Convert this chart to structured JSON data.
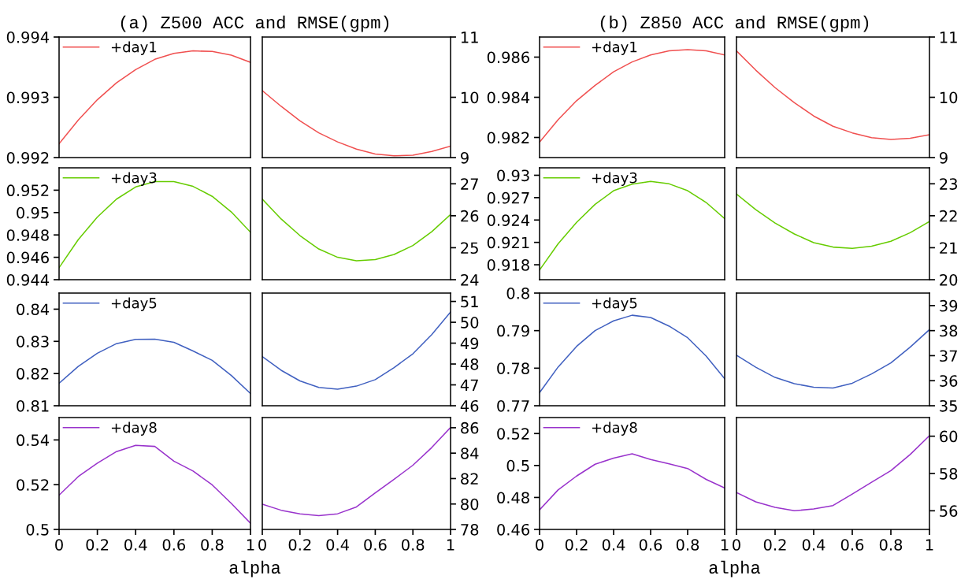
{
  "chart_data": [
    {
      "type": "line",
      "title": "(a) Z500 ACC and RMSE(gpm)",
      "x": [
        0,
        0.1,
        0.2,
        0.3,
        0.4,
        0.5,
        0.6,
        0.7,
        0.8,
        0.9,
        1
      ],
      "xlim": [
        0,
        1
      ],
      "ylim": [
        0.992,
        0.994
      ],
      "yticks": [
        0.992,
        0.993,
        0.994
      ],
      "tick_labels": "y",
      "legend": "top left",
      "series": [
        {
          "name": "+day1",
          "color": "#f05050",
          "values": [
            0.99223,
            0.99262,
            0.99296,
            0.99324,
            0.99346,
            0.99363,
            0.99373,
            0.99377,
            0.99376,
            0.9937,
            0.99358
          ]
        }
      ]
    },
    {
      "type": "line",
      "x": [
        0,
        0.1,
        0.2,
        0.3,
        0.4,
        0.5,
        0.6,
        0.7,
        0.8,
        0.9,
        1
      ],
      "xlim": [
        0,
        1
      ],
      "y2lim": [
        9,
        11
      ],
      "y2ticks": [
        9,
        10,
        11
      ],
      "tick_labels": "y2",
      "series": [
        {
          "color": "#f05050",
          "axis": "y2",
          "values": [
            10.11,
            9.85,
            9.61,
            9.41,
            9.26,
            9.14,
            9.06,
            9.03,
            9.04,
            9.1,
            9.19
          ]
        }
      ]
    },
    {
      "type": "line",
      "title": "(b) Z850 ACC and RMSE(gpm)",
      "x": [
        0,
        0.1,
        0.2,
        0.3,
        0.4,
        0.5,
        0.6,
        0.7,
        0.8,
        0.9,
        1
      ],
      "xlim": [
        0,
        1
      ],
      "ylim": [
        0.981,
        0.987
      ],
      "yticks": [
        0.982,
        0.984,
        0.986
      ],
      "tick_labels": "y",
      "legend": "top left",
      "series": [
        {
          "name": "+day1",
          "color": "#f05050",
          "values": [
            0.98177,
            0.98288,
            0.98383,
            0.98459,
            0.98527,
            0.98576,
            0.98611,
            0.98631,
            0.98637,
            0.98631,
            0.98611
          ]
        }
      ]
    },
    {
      "type": "line",
      "x": [
        0,
        0.1,
        0.2,
        0.3,
        0.4,
        0.5,
        0.6,
        0.7,
        0.8,
        0.9,
        1
      ],
      "xlim": [
        0,
        1
      ],
      "y2lim": [
        9,
        11
      ],
      "y2ticks": [
        9,
        10,
        11
      ],
      "tick_labels": "y2",
      "series": [
        {
          "color": "#f05050",
          "axis": "y2",
          "values": [
            10.77,
            10.45,
            10.16,
            9.91,
            9.69,
            9.52,
            9.41,
            9.33,
            9.3,
            9.32,
            9.38
          ]
        }
      ]
    },
    {
      "type": "line",
      "x": [
        0,
        0.1,
        0.2,
        0.3,
        0.4,
        0.5,
        0.6,
        0.7,
        0.8,
        0.9,
        1
      ],
      "xlim": [
        0,
        1
      ],
      "ylim": [
        0.944,
        0.954
      ],
      "yticks": [
        0.944,
        0.946,
        0.948,
        0.95,
        0.952
      ],
      "tick_labels": "y",
      "legend": "top left",
      "series": [
        {
          "name": "+day3",
          "color": "#66cc00",
          "values": [
            0.94507,
            0.94757,
            0.9496,
            0.9512,
            0.95229,
            0.95276,
            0.95276,
            0.95234,
            0.95145,
            0.95005,
            0.94824
          ]
        }
      ]
    },
    {
      "type": "line",
      "x": [
        0,
        0.1,
        0.2,
        0.3,
        0.4,
        0.5,
        0.6,
        0.7,
        0.8,
        0.9,
        1
      ],
      "xlim": [
        0,
        1
      ],
      "y2lim": [
        24,
        27.5
      ],
      "y2ticks": [
        24,
        25,
        26,
        27
      ],
      "tick_labels": "y2",
      "series": [
        {
          "color": "#66cc00",
          "axis": "y2",
          "values": [
            26.52,
            25.9,
            25.38,
            24.96,
            24.7,
            24.59,
            24.63,
            24.79,
            25.07,
            25.5,
            26.04
          ]
        }
      ]
    },
    {
      "type": "line",
      "x": [
        0,
        0.1,
        0.2,
        0.3,
        0.4,
        0.5,
        0.6,
        0.7,
        0.8,
        0.9,
        1
      ],
      "xlim": [
        0,
        1
      ],
      "ylim": [
        0.916,
        0.931
      ],
      "yticks": [
        0.918,
        0.921,
        0.924,
        0.927,
        0.93
      ],
      "tick_labels": "y",
      "legend": "top left",
      "series": [
        {
          "name": "+day3",
          "color": "#66cc00",
          "values": [
            0.91729,
            0.9208,
            0.92368,
            0.9261,
            0.92793,
            0.9288,
            0.92918,
            0.92885,
            0.92793,
            0.92635,
            0.92418
          ]
        }
      ]
    },
    {
      "type": "line",
      "x": [
        0,
        0.1,
        0.2,
        0.3,
        0.4,
        0.5,
        0.6,
        0.7,
        0.8,
        0.9,
        1
      ],
      "xlim": [
        0,
        1
      ],
      "y2lim": [
        20,
        23.5
      ],
      "y2ticks": [
        20,
        21,
        22,
        23
      ],
      "tick_labels": "y2",
      "series": [
        {
          "color": "#66cc00",
          "axis": "y2",
          "values": [
            22.68,
            22.19,
            21.77,
            21.43,
            21.16,
            21.02,
            20.98,
            21.05,
            21.2,
            21.47,
            21.82
          ]
        }
      ]
    },
    {
      "type": "line",
      "x": [
        0,
        0.1,
        0.2,
        0.3,
        0.4,
        0.5,
        0.6,
        0.7,
        0.8,
        0.9,
        1
      ],
      "xlim": [
        0,
        1
      ],
      "ylim": [
        0.81,
        0.845
      ],
      "yticks": [
        0.81,
        0.82,
        0.83,
        0.84
      ],
      "tick_labels": "y",
      "legend": "top left",
      "series": [
        {
          "name": "+day5",
          "color": "#4060c0",
          "values": [
            0.817,
            0.8222,
            0.8263,
            0.8293,
            0.8306,
            0.8307,
            0.8297,
            0.827,
            0.8241,
            0.8194,
            0.8138
          ]
        }
      ]
    },
    {
      "type": "line",
      "x": [
        0,
        0.1,
        0.2,
        0.3,
        0.4,
        0.5,
        0.6,
        0.7,
        0.8,
        0.9,
        1
      ],
      "xlim": [
        0,
        1
      ],
      "y2lim": [
        46,
        51.4
      ],
      "y2ticks": [
        46,
        47,
        48,
        49,
        50,
        51
      ],
      "tick_labels": "y2",
      "series": [
        {
          "color": "#4060c0",
          "axis": "y2",
          "values": [
            48.36,
            47.7,
            47.19,
            46.88,
            46.79,
            46.94,
            47.25,
            47.83,
            48.49,
            49.41,
            50.49
          ]
        }
      ]
    },
    {
      "type": "line",
      "x": [
        0,
        0.1,
        0.2,
        0.3,
        0.4,
        0.5,
        0.6,
        0.7,
        0.8,
        0.9,
        1
      ],
      "xlim": [
        0,
        1
      ],
      "ylim": [
        0.77,
        0.8
      ],
      "yticks": [
        0.77,
        0.78,
        0.79,
        0.8
      ],
      "tick_labels": "y",
      "legend": "top left",
      "series": [
        {
          "name": "+day5",
          "color": "#4060c0",
          "values": [
            0.7735,
            0.7803,
            0.7858,
            0.79,
            0.7926,
            0.7941,
            0.7935,
            0.7912,
            0.7881,
            0.7832,
            0.7772
          ]
        }
      ]
    },
    {
      "type": "line",
      "x": [
        0,
        0.1,
        0.2,
        0.3,
        0.4,
        0.5,
        0.6,
        0.7,
        0.8,
        0.9,
        1
      ],
      "xlim": [
        0,
        1
      ],
      "y2lim": [
        35,
        39.5
      ],
      "y2ticks": [
        35,
        36,
        37,
        38,
        39
      ],
      "tick_labels": "y2",
      "series": [
        {
          "color": "#4060c0",
          "axis": "y2",
          "values": [
            37.02,
            36.54,
            36.13,
            35.88,
            35.74,
            35.71,
            35.9,
            36.27,
            36.71,
            37.34,
            38.04
          ]
        }
      ]
    },
    {
      "type": "line",
      "xlabel": "alpha",
      "x": [
        0,
        0.1,
        0.2,
        0.3,
        0.4,
        0.5,
        0.6,
        0.7,
        0.8,
        0.9,
        1
      ],
      "xlim": [
        0,
        1
      ],
      "xticks": [
        0,
        0.2,
        0.4,
        0.6,
        0.8,
        1
      ],
      "ylim": [
        0.5,
        0.55
      ],
      "yticks": [
        0.5,
        0.52,
        0.54
      ],
      "legend": "top left",
      "series": [
        {
          "name": "+day8",
          "color": "#9933cc",
          "values": [
            0.5153,
            0.5236,
            0.5296,
            0.5348,
            0.5376,
            0.5371,
            0.5305,
            0.5261,
            0.5199,
            0.5116,
            0.5028
          ]
        }
      ]
    },
    {
      "type": "line",
      "x": [
        0,
        0.1,
        0.2,
        0.3,
        0.4,
        0.5,
        0.6,
        0.7,
        0.8,
        0.9,
        1
      ],
      "xlim": [
        0,
        1
      ],
      "xticks": [
        0,
        0.2,
        0.4,
        0.6,
        0.8,
        1
      ],
      "y2lim": [
        78,
        86.8
      ],
      "y2ticks": [
        78,
        80,
        82,
        84,
        86
      ],
      "series": [
        {
          "color": "#9933cc",
          "axis": "y2",
          "values": [
            79.98,
            79.51,
            79.23,
            79.08,
            79.23,
            79.77,
            80.88,
            81.94,
            83.05,
            84.44,
            86.02
          ]
        }
      ]
    },
    {
      "type": "line",
      "xlabel": "alpha",
      "x": [
        0,
        0.1,
        0.2,
        0.3,
        0.4,
        0.5,
        0.6,
        0.7,
        0.8,
        0.9,
        1
      ],
      "xlim": [
        0,
        1
      ],
      "xticks": [
        0,
        0.2,
        0.4,
        0.6,
        0.8,
        1
      ],
      "ylim": [
        0.46,
        0.53
      ],
      "yticks": [
        0.46,
        0.48,
        0.5,
        0.52
      ],
      "legend": "top left",
      "series": [
        {
          "name": "+day8",
          "color": "#9933cc",
          "values": [
            0.4723,
            0.4847,
            0.4934,
            0.5008,
            0.5046,
            0.5073,
            0.5037,
            0.501,
            0.4981,
            0.4913,
            0.4859
          ]
        }
      ]
    },
    {
      "type": "line",
      "x": [
        0,
        0.1,
        0.2,
        0.3,
        0.4,
        0.5,
        0.6,
        0.7,
        0.8,
        0.9,
        1
      ],
      "xlim": [
        0,
        1
      ],
      "xticks": [
        0,
        0.2,
        0.4,
        0.6,
        0.8,
        1
      ],
      "y2lim": [
        55,
        61
      ],
      "y2ticks": [
        56,
        58,
        60
      ],
      "series": [
        {
          "color": "#9933cc",
          "axis": "y2",
          "values": [
            56.98,
            56.48,
            56.18,
            56.0,
            56.1,
            56.28,
            56.9,
            57.53,
            58.15,
            59.02,
            60.03
          ]
        }
      ]
    }
  ]
}
